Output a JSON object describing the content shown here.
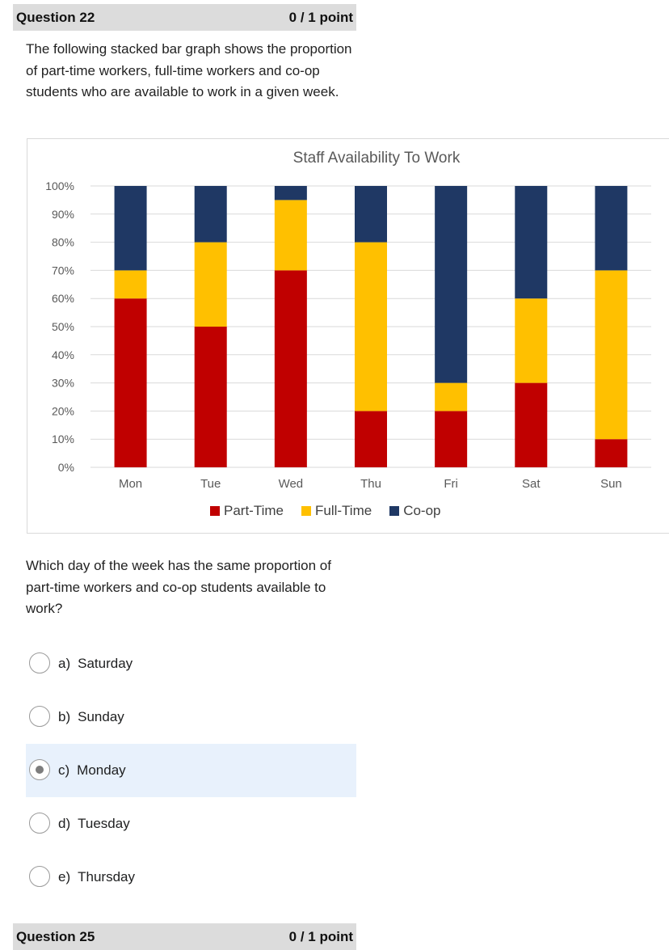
{
  "question": {
    "number_label": "Question 22",
    "points": "0 / 1 point",
    "intro": "The following stacked bar graph shows the proportion of part-time workers, full-time workers and co-op students who are available to work in a given week.",
    "prompt": "Which day of the week has the same proportion of part-time workers and co-op students available to work?",
    "choices": [
      {
        "letter": "a)",
        "label": "Saturday",
        "selected": false
      },
      {
        "letter": "b)",
        "label": "Sunday",
        "selected": false
      },
      {
        "letter": "c)",
        "label": "Monday",
        "selected": true
      },
      {
        "letter": "d)",
        "label": "Tuesday",
        "selected": false
      },
      {
        "letter": "e)",
        "label": "Thursday",
        "selected": false
      }
    ]
  },
  "next_question": {
    "number_label": "Question 25",
    "points": "0 / 1 point"
  },
  "chart_data": {
    "type": "bar",
    "stacked": true,
    "title": "Staff Availability To Work",
    "categories": [
      "Mon",
      "Tue",
      "Wed",
      "Thu",
      "Fri",
      "Sat",
      "Sun"
    ],
    "yticks": [
      "0%",
      "10%",
      "20%",
      "30%",
      "40%",
      "50%",
      "60%",
      "70%",
      "80%",
      "90%",
      "100%"
    ],
    "ylim": [
      0,
      100
    ],
    "grid": true,
    "legend_position": "bottom",
    "series": [
      {
        "name": "Part-Time",
        "color": "#c00000",
        "values": [
          60,
          50,
          70,
          20,
          20,
          30,
          10
        ]
      },
      {
        "name": "Full-Time",
        "color": "#ffc000",
        "values": [
          10,
          30,
          25,
          60,
          10,
          30,
          60
        ]
      },
      {
        "name": "Co-op",
        "color": "#1f3864",
        "values": [
          30,
          20,
          5,
          20,
          70,
          40,
          30
        ]
      }
    ]
  }
}
